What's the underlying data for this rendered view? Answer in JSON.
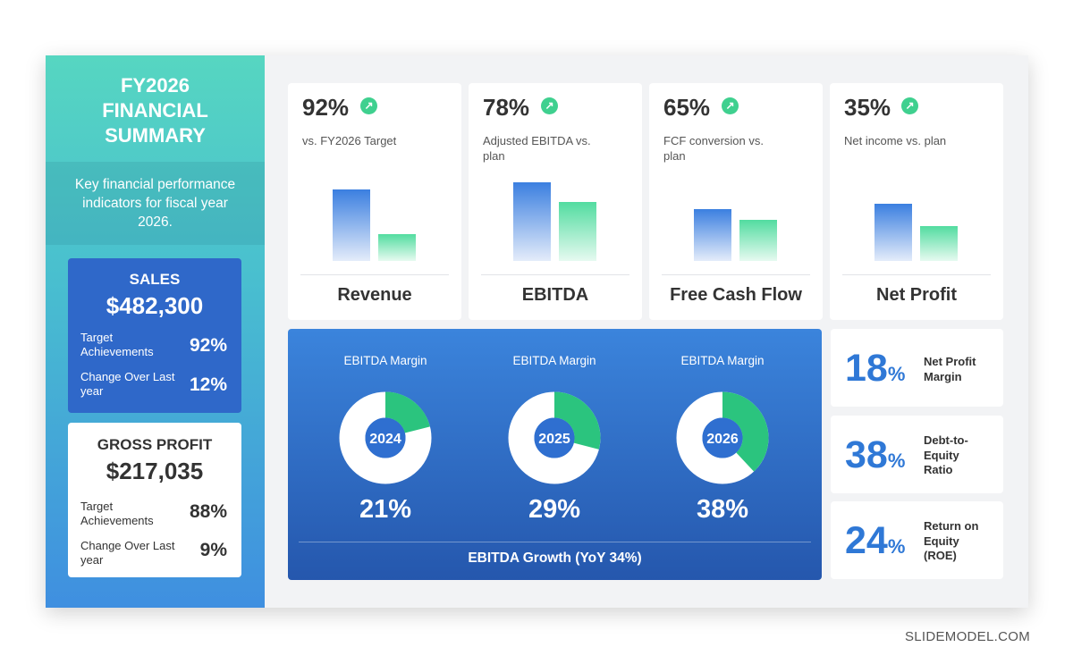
{
  "sidebar": {
    "title_lines": [
      "FY2026",
      "FINANCIAL",
      "SUMMARY"
    ],
    "description": "Key financial performance indicators for fiscal year 2026."
  },
  "sales_card": {
    "title": "SALES",
    "value": "$482,300",
    "rows": [
      {
        "label": "Target Achievements",
        "value": "92%"
      },
      {
        "label": "Change Over Last year",
        "value": "12%"
      }
    ]
  },
  "gross_card": {
    "title": "GROSS PROFIT",
    "value": "$217,035",
    "rows": [
      {
        "label": "Target Achievements",
        "value": "88%"
      },
      {
        "label": "Change Over Last year",
        "value": "9%"
      }
    ]
  },
  "kpis": [
    {
      "pct": "92%",
      "sub": "vs. FY2026 Target",
      "name": "Revenue",
      "bar_values": [
        0.8,
        0.3
      ]
    },
    {
      "pct": "78%",
      "sub": "Adjusted EBITDA vs. plan",
      "name": "EBITDA",
      "bar_values": [
        0.88,
        0.66
      ]
    },
    {
      "pct": "65%",
      "sub": "FCF conversion vs. plan",
      "name": "Free Cash Flow",
      "bar_values": [
        0.58,
        0.46
      ]
    },
    {
      "pct": "35%",
      "sub": "Net income vs. plan",
      "name": "Net Profit",
      "bar_values": [
        0.64,
        0.39
      ]
    }
  ],
  "ebitda_panel": {
    "donuts": [
      {
        "label": "EBITDA Margin",
        "year": "2024",
        "pct": "21%",
        "value": 0.21
      },
      {
        "label": "EBITDA Margin",
        "year": "2025",
        "pct": "29%",
        "value": 0.29
      },
      {
        "label": "EBITDA Margin",
        "year": "2026",
        "pct": "38%",
        "value": 0.38
      }
    ],
    "footer": "EBITDA Growth (YoY 34%)"
  },
  "ratios": [
    {
      "num": "18",
      "unit": "%",
      "label_lines": [
        "Net Profit",
        "Margin"
      ]
    },
    {
      "num": "38",
      "unit": "%",
      "label_lines": [
        "Debt-to-",
        "Equity",
        "Ratio"
      ]
    },
    {
      "num": "24",
      "unit": "%",
      "label_lines": [
        "Return on",
        "Equity",
        "(ROE)"
      ]
    }
  ],
  "colors": {
    "accent_blue": "#2f78d6",
    "accent_green": "#2bc47e",
    "teal": "#56d6c1"
  },
  "icons": {
    "kpi_arrow": "arrow-up-right-icon"
  },
  "brand": "SLIDEMODEL.COM"
}
